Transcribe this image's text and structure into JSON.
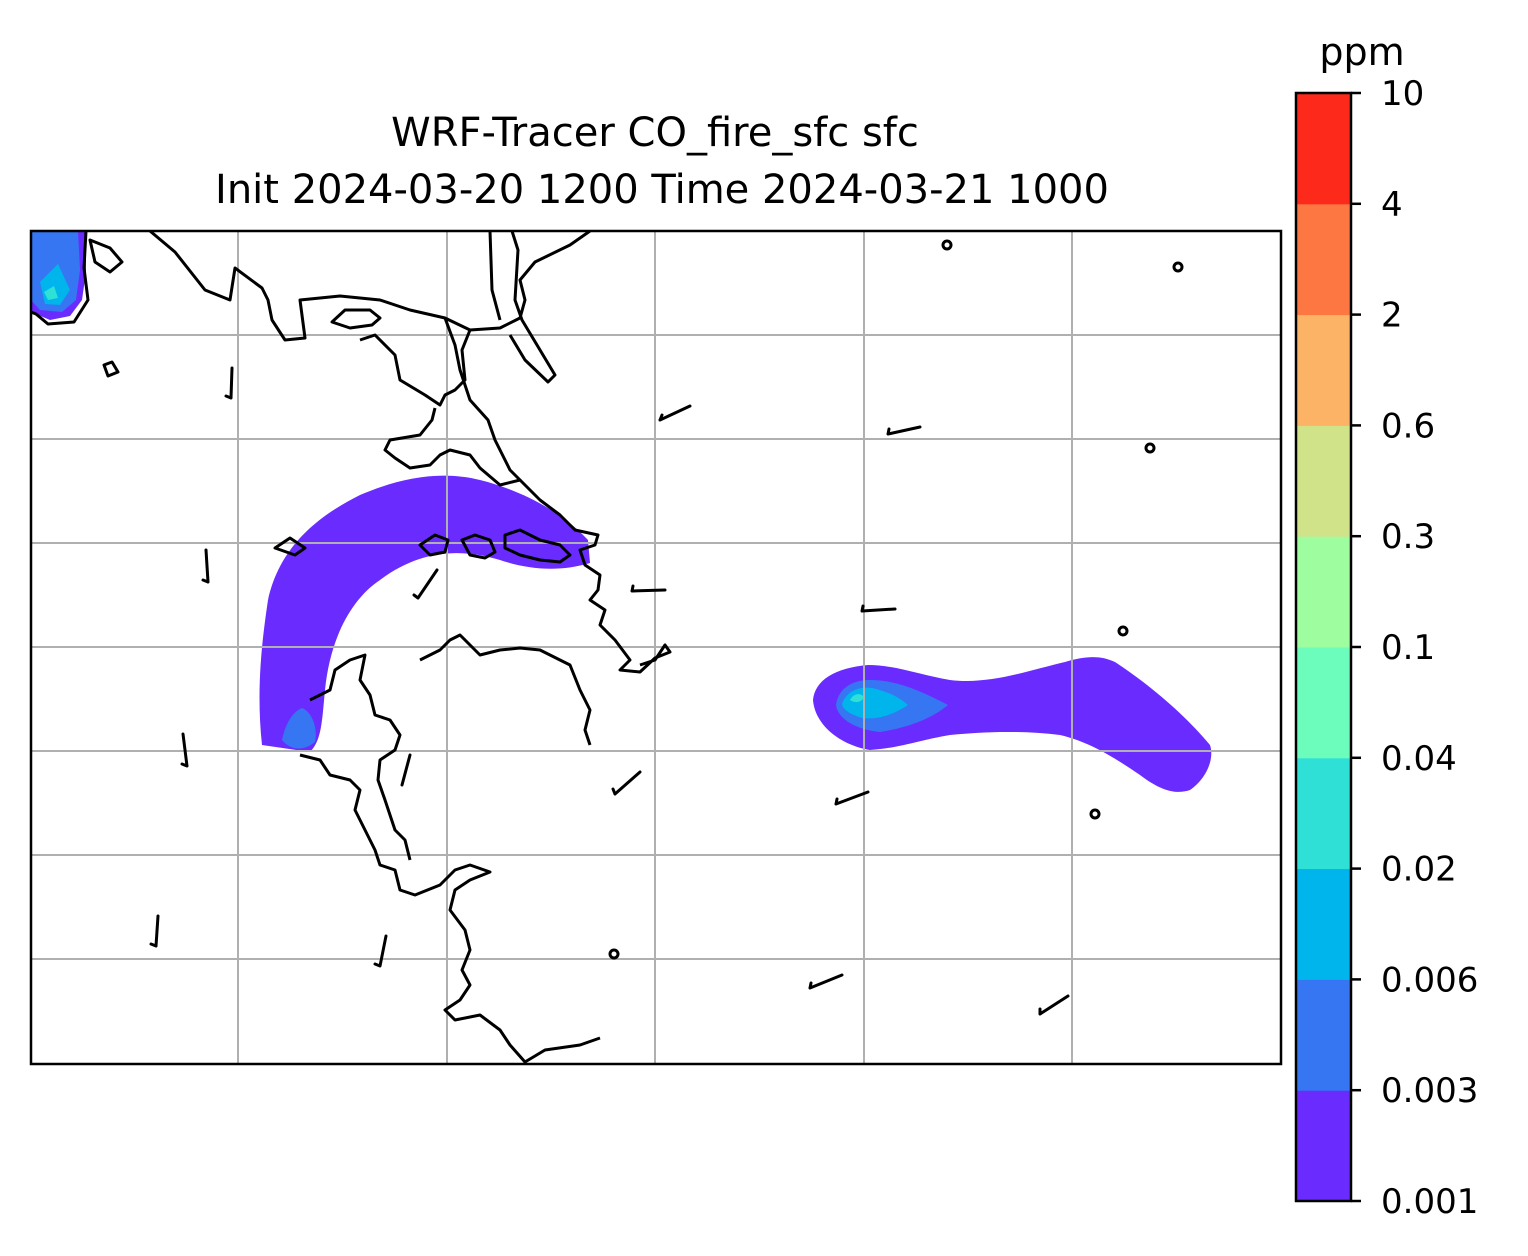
{
  "title": {
    "line1": "WRF-Tracer CO_fire_sfc sfc",
    "line2": "Init 2024-03-20 1200 Time 2024-03-21 1000"
  },
  "colorbar": {
    "unit": "ppm",
    "levels": [
      "0.001",
      "0.003",
      "0.006",
      "0.02",
      "0.04",
      "0.1",
      "0.3",
      "0.6",
      "2",
      "4",
      "10"
    ],
    "colors": [
      "#6a2cfe",
      "#3676f3",
      "#00b4ec",
      "#2fe0d6",
      "#6cfdbc",
      "#9efd9f",
      "#d0e389",
      "#fdb366",
      "#fd7742",
      "#fd2a1b"
    ]
  },
  "map": {
    "gridlines": true,
    "gridline_color": "#b0b0b0",
    "coastline_color": "#000000",
    "plumes": [
      {
        "name": "northwest corner plume",
        "peak_level": "0.02"
      },
      {
        "name": "arc plume",
        "peak_level": "0.006"
      },
      {
        "name": "offshore elongated plume",
        "peak_level": "0.02"
      }
    ],
    "wind_symbols": "barbs and calm circles"
  }
}
